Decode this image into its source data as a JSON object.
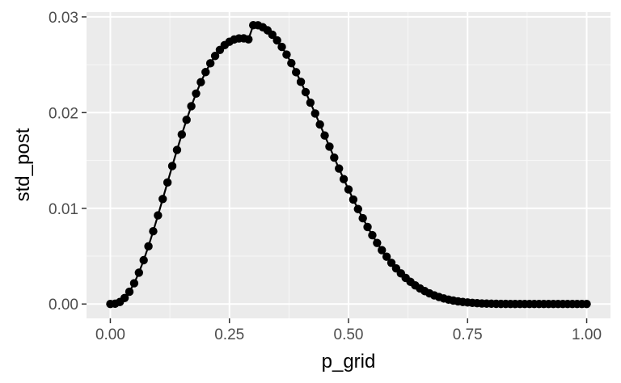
{
  "chart_data": {
    "type": "line",
    "title": "",
    "xlabel": "p_grid",
    "ylabel": "std_post",
    "xlim": [
      -0.05,
      1.05
    ],
    "ylim": [
      -0.0015,
      0.0305
    ],
    "x_ticks": [
      0.0,
      0.25,
      0.5,
      0.75,
      1.0
    ],
    "x_tick_labels": [
      "0.00",
      "0.25",
      "0.50",
      "0.75",
      "1.00"
    ],
    "x_minor_ticks": [
      0.125,
      0.375,
      0.625,
      0.875
    ],
    "y_ticks": [
      0.0,
      0.01,
      0.02,
      0.03
    ],
    "y_tick_labels": [
      "0.00",
      "0.01",
      "0.02",
      "0.03"
    ],
    "y_minor_ticks": [
      0.005,
      0.015,
      0.025
    ],
    "grid": true,
    "series": [
      {
        "name": "std_post",
        "markers": true,
        "line": true,
        "x": [
          0.0,
          0.01,
          0.02,
          0.03,
          0.04,
          0.05,
          0.06,
          0.07,
          0.08,
          0.09,
          0.1,
          0.11,
          0.12,
          0.13,
          0.14,
          0.15,
          0.16,
          0.17,
          0.18,
          0.19,
          0.2,
          0.21,
          0.22,
          0.23,
          0.24,
          0.25,
          0.26,
          0.27,
          0.28,
          0.29,
          0.3,
          0.31,
          0.32,
          0.33,
          0.34,
          0.35,
          0.36,
          0.37,
          0.38,
          0.39,
          0.4,
          0.41,
          0.42,
          0.43,
          0.44,
          0.45,
          0.46,
          0.47,
          0.48,
          0.49,
          0.5,
          0.51,
          0.52,
          0.53,
          0.54,
          0.55,
          0.56,
          0.57,
          0.58,
          0.59,
          0.6,
          0.61,
          0.62,
          0.63,
          0.64,
          0.65,
          0.66,
          0.67,
          0.68,
          0.69,
          0.7,
          0.71,
          0.72,
          0.73,
          0.74,
          0.75,
          0.76,
          0.77,
          0.78,
          0.79,
          0.8,
          0.81,
          0.82,
          0.83,
          0.84,
          0.85,
          0.86,
          0.87,
          0.88,
          0.89,
          0.9,
          0.91,
          0.92,
          0.93,
          0.94,
          0.95,
          0.96,
          0.97,
          0.98,
          0.99,
          1.0
        ],
        "y": [
          0.0,
          3e-05,
          0.00021,
          0.00063,
          0.00128,
          0.00217,
          0.00328,
          0.00458,
          0.00603,
          0.0076,
          0.00926,
          0.01097,
          0.0127,
          0.01442,
          0.0161,
          0.01771,
          0.01924,
          0.02067,
          0.02199,
          0.02318,
          0.02423,
          0.02515,
          0.02592,
          0.02655,
          0.02705,
          0.0274,
          0.02764,
          0.02775,
          0.02776,
          0.02766,
          0.02913,
          0.02912,
          0.02892,
          0.0286,
          0.02814,
          0.02755,
          0.02686,
          0.02606,
          0.02517,
          0.02422,
          0.02321,
          0.02214,
          0.02104,
          0.01991,
          0.01876,
          0.01761,
          0.01645,
          0.0153,
          0.01416,
          0.01305,
          0.01197,
          0.01092,
          0.00992,
          0.00896,
          0.00805,
          0.00719,
          0.00638,
          0.00563,
          0.00494,
          0.0043,
          0.00372,
          0.0032,
          0.00273,
          0.00232,
          0.00195,
          0.00163,
          0.00135,
          0.00111,
          0.0009,
          0.00073,
          0.00058,
          0.00046,
          0.00036,
          0.00028,
          0.00021,
          0.00016,
          0.00012,
          9e-05,
          6e-05,
          4e-05,
          3e-05,
          2e-05,
          1e-05,
          1e-05,
          0.0,
          0.0,
          0.0,
          0.0,
          0.0,
          0.0,
          0.0,
          0.0,
          0.0,
          0.0,
          0.0,
          0.0,
          0.0,
          0.0,
          0.0,
          0.0,
          0.0
        ]
      }
    ]
  },
  "colors": {
    "panel_background": "#ebebeb",
    "grid_major": "#ffffff",
    "grid_minor": "#f7f7f7",
    "series": "#000000",
    "tick": "#333333",
    "tick_label": "#4d4d4d"
  }
}
